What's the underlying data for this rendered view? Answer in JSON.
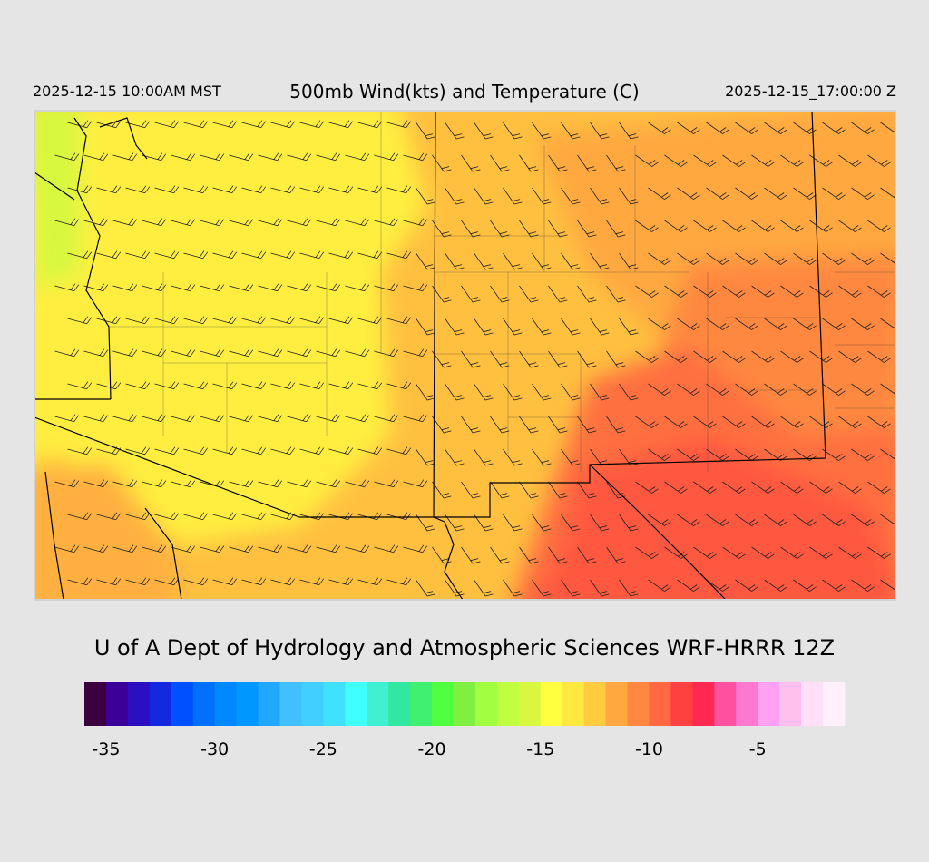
{
  "header": {
    "left_time": "2025-12-15 10:00AM MST",
    "title": "500mb Wind(kts) and Temperature (C)",
    "right_time": "2025-12-15_17:00:00 Z"
  },
  "footer": {
    "credit": "U of A Dept of Hydrology and Atmospheric Sciences WRF-HRRR 12Z"
  },
  "colorbar": {
    "range": [
      -36,
      -1
    ],
    "colors": [
      "#3a0040",
      "#3c0099",
      "#2a10c0",
      "#1428e0",
      "#0050ff",
      "#0070ff",
      "#0088ff",
      "#0098ff",
      "#20a8ff",
      "#40c0ff",
      "#40d0ff",
      "#40e0ff",
      "#40ffff",
      "#40f0d0",
      "#30e8a0",
      "#40f070",
      "#50ff40",
      "#80f040",
      "#a0ff40",
      "#c0ff40",
      "#d8f840",
      "#ffff40",
      "#ffe840",
      "#ffcc40",
      "#ffa840",
      "#ff8840",
      "#ff6840",
      "#ff4040",
      "#ff2850",
      "#ff50a0",
      "#ff78d0",
      "#ffa0f0",
      "#ffc0f0",
      "#ffe0f8",
      "#fff0fc"
    ],
    "ticks": [
      -35,
      -30,
      -25,
      -20,
      -15,
      -10,
      -5
    ]
  }
}
